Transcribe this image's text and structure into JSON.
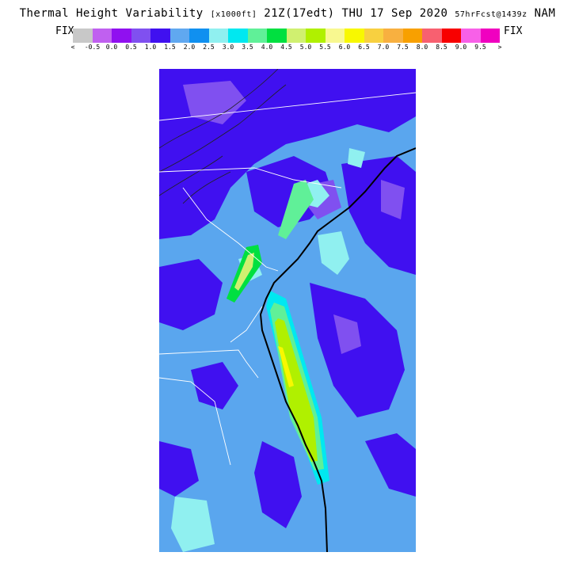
{
  "header": {
    "title_main": "Thermal Height Variability",
    "title_units": "[x1000ft]",
    "valid_time": "21Z(17edt) THU 17 Sep 2020",
    "forecast": "57hrFcst@1439z",
    "model": "NAM"
  },
  "colorbar": {
    "left_label": "FIX",
    "right_label": "FIX",
    "colors": [
      "#c8c8c8",
      "#c060f0",
      "#9010f0",
      "#8050f0",
      "#4010f0",
      "#60a8f0",
      "#1090f0",
      "#90f0f0",
      "#00e8f0",
      "#60f098",
      "#00e040",
      "#d0f070",
      "#b0f000",
      "#f8f890",
      "#f8f800",
      "#f8d040",
      "#f8b040",
      "#f8a000",
      "#f86070",
      "#f80000",
      "#f860e8",
      "#f000c0"
    ],
    "tick_labels": [
      "<",
      "-0.5",
      "0.0",
      "0.5",
      "1.0",
      "1.5",
      "2.0",
      "2.5",
      "3.0",
      "3.5",
      "4.0",
      "4.5",
      "5.0",
      "5.5",
      "6.0",
      "6.5",
      "7.0",
      "7.5",
      "8.0",
      "8.5",
      "9.0",
      "9.5",
      ">"
    ]
  },
  "map": {
    "background_color": "#5aa6ee",
    "dominant_fill_color": "#4010f0",
    "peak_fill_color": "#f8f800",
    "coast_color": "#000000",
    "border_color": "#ffffff"
  }
}
